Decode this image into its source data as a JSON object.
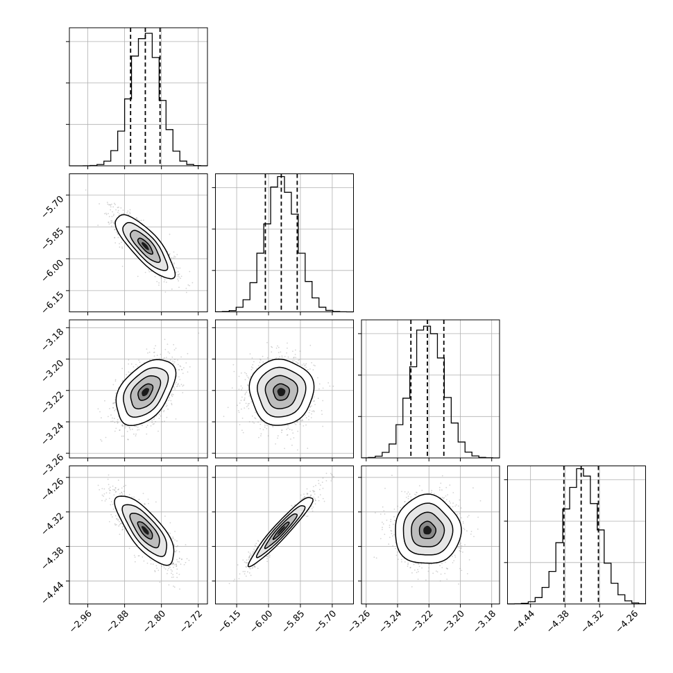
{
  "chart_data": {
    "type": "corner",
    "n_params": 4,
    "grid": true,
    "colors": {
      "line": "#000000",
      "grid": "#b0b0b0",
      "scatter": "#808080",
      "background": "#ffffff"
    },
    "params": [
      {
        "name": "",
        "mean": -2.835,
        "sd": 0.032,
        "quantiles": [
          -2.867,
          -2.835,
          -2.803
        ],
        "range": [
          -3.0,
          -2.7
        ],
        "ticks": [
          -2.96,
          -2.88,
          -2.8,
          -2.72
        ],
        "tick_labels": [
          "−2.96",
          "−2.88",
          "−2.80",
          "−2.72"
        ]
      },
      {
        "name": "",
        "mean": -5.94,
        "sd": 0.075,
        "quantiles": [
          -6.015,
          -5.94,
          -5.865
        ],
        "range": [
          -6.25,
          -5.6
        ],
        "ticks": [
          -6.15,
          -6.0,
          -5.85,
          -5.7
        ],
        "tick_labels": [
          "−6.15",
          "−6.00",
          "−5.85",
          "−5.70"
        ]
      },
      {
        "name": "",
        "mean": -3.221,
        "sd": 0.0105,
        "quantiles": [
          -3.2315,
          -3.221,
          -3.2105
        ],
        "range": [
          -3.263,
          -3.175
        ],
        "ticks": [
          -3.26,
          -3.24,
          -3.22,
          -3.2,
          -3.18
        ],
        "tick_labels": [
          "−3.26",
          "−3.24",
          "−3.22",
          "−3.20",
          "−3.18"
        ]
      },
      {
        "name": "",
        "mean": -4.352,
        "sd": 0.03,
        "quantiles": [
          -4.382,
          -4.352,
          -4.322
        ],
        "range": [
          -4.48,
          -4.24
        ],
        "ticks": [
          -4.44,
          -4.38,
          -4.32,
          -4.26
        ],
        "tick_labels": [
          "−4.44",
          "−4.38",
          "−4.32",
          "−4.26"
        ]
      }
    ],
    "correlations": [
      [
        0,
        1,
        -0.8
      ],
      [
        0,
        2,
        0.45
      ],
      [
        1,
        2,
        0.0
      ],
      [
        0,
        3,
        -0.75
      ],
      [
        1,
        3,
        0.95
      ],
      [
        2,
        3,
        0.0
      ]
    ],
    "contour_sigma_levels": [
      0.5,
      1.0,
      1.5,
      2.0
    ],
    "histogram_bins": 20
  }
}
